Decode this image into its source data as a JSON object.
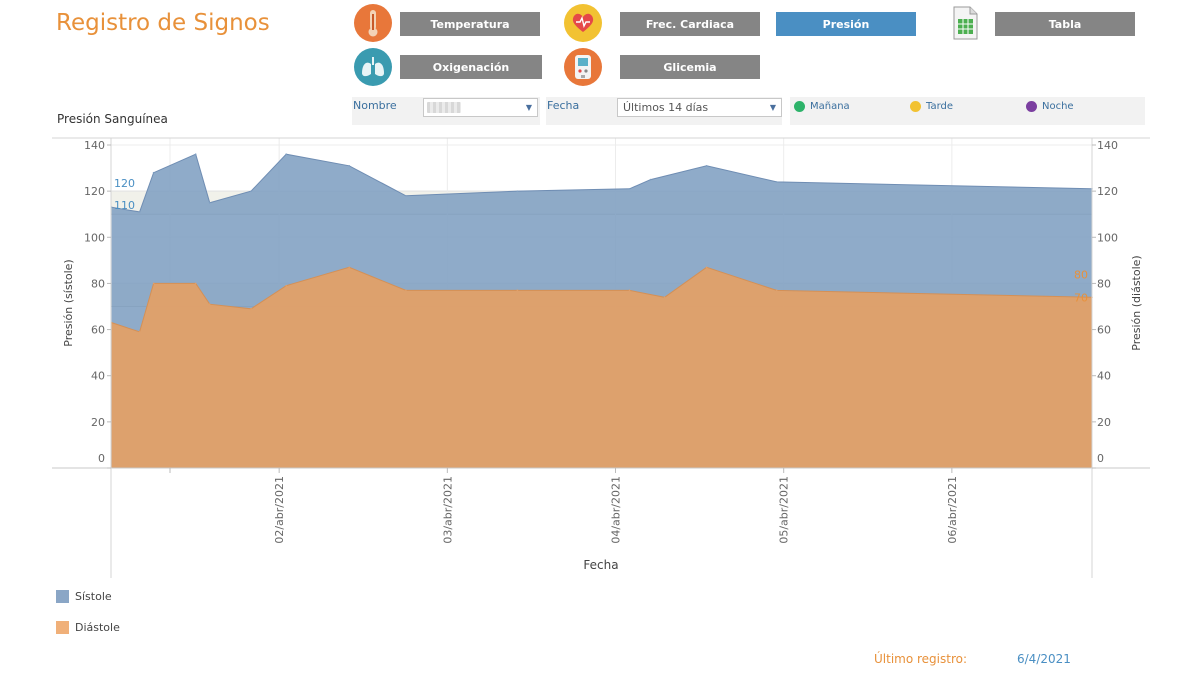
{
  "app": {
    "title": "Registro de Signos"
  },
  "nav": [
    {
      "key": "temperatura",
      "label": "Temperatura",
      "icon": "thermometer-icon",
      "icon_bg": "#e8773a",
      "active": false
    },
    {
      "key": "frec",
      "label": "Frec. Cardiaca",
      "icon": "heart-icon",
      "icon_bg": "#f2c232",
      "active": false
    },
    {
      "key": "presion",
      "label": "Presión",
      "icon": "",
      "icon_bg": "",
      "active": true
    },
    {
      "key": "tabla",
      "label": "Tabla",
      "icon": "spreadsheet-icon",
      "icon_bg": "",
      "active": false
    },
    {
      "key": "oxigenacion",
      "label": "Oxigenación",
      "icon": "lungs-icon",
      "icon_bg": "#3a9bb0",
      "active": false
    },
    {
      "key": "glicemia",
      "label": "Glicemia",
      "icon": "glucometer-icon",
      "icon_bg": "#e8773a",
      "active": false
    }
  ],
  "filters": {
    "nombre_label": "Nombre",
    "fecha_label": "Fecha",
    "fecha_value": "Últimos 14 días",
    "shifts": [
      {
        "label": "Mañana",
        "color": "#2db36a"
      },
      {
        "label": "Tarde",
        "color": "#f2c232"
      },
      {
        "label": "Noche",
        "color": "#7b3fa0"
      }
    ]
  },
  "chart_title": "Presión Sanguínea",
  "chart_data": {
    "type": "area",
    "xlabel": "Fecha",
    "ylabel_left": "Presión (sístole)",
    "ylabel_right": "Presión (diástole)",
    "ylim": [
      0,
      140
    ],
    "yticks": [
      0,
      20,
      40,
      60,
      80,
      100,
      120,
      140
    ],
    "x_ticks": [
      "02/abr/2021",
      "03/abr/2021",
      "04/abr/2021",
      "05/abr/2021",
      "06/abr/2021"
    ],
    "x_range": [
      "2021-04-01T00:00",
      "2021-04-06T20:00"
    ],
    "reference_bands": [
      {
        "min": 110,
        "max": 120,
        "labels": [
          "110",
          "120"
        ],
        "label_color": "#4a8fc3"
      },
      {
        "min": 70,
        "max": 80,
        "labels": [
          "70",
          "80"
        ],
        "label_color": "#e8913a"
      }
    ],
    "series": [
      {
        "name": "Sístole",
        "color": "#7f9fc2",
        "points": [
          [
            "2021-04-01T00:05",
            113
          ],
          [
            "2021-04-01T04:05",
            111
          ],
          [
            "2021-04-01T06:05",
            128
          ],
          [
            "2021-04-01T12:05",
            136
          ],
          [
            "2021-04-01T14:05",
            115
          ],
          [
            "2021-04-01T20:00",
            120
          ],
          [
            "2021-04-02T01:00",
            136
          ],
          [
            "2021-04-02T10:00",
            131
          ],
          [
            "2021-04-02T18:05",
            118
          ],
          [
            "2021-04-03T10:00",
            120
          ],
          [
            "2021-04-04T02:00",
            121
          ],
          [
            "2021-04-04T05:00",
            125
          ],
          [
            "2021-04-04T13:00",
            131
          ],
          [
            "2021-04-04T23:00",
            124
          ],
          [
            "2021-04-06T20:00",
            121
          ]
        ]
      },
      {
        "name": "Diástole",
        "color": "#e2a068",
        "points": [
          [
            "2021-04-01T00:05",
            63
          ],
          [
            "2021-04-01T04:05",
            59
          ],
          [
            "2021-04-01T06:05",
            80
          ],
          [
            "2021-04-01T12:05",
            80
          ],
          [
            "2021-04-01T14:05",
            71
          ],
          [
            "2021-04-01T20:00",
            69
          ],
          [
            "2021-04-02T01:00",
            79
          ],
          [
            "2021-04-02T10:00",
            87
          ],
          [
            "2021-04-02T18:05",
            77
          ],
          [
            "2021-04-03T10:00",
            77
          ],
          [
            "2021-04-04T02:00",
            77
          ],
          [
            "2021-04-04T07:00",
            74
          ],
          [
            "2021-04-04T13:00",
            87
          ],
          [
            "2021-04-04T23:00",
            77
          ],
          [
            "2021-04-06T20:00",
            74
          ]
        ]
      }
    ]
  },
  "legend": [
    {
      "label": "Sístole",
      "color": "#8aa6c6"
    },
    {
      "label": "Diástole",
      "color": "#f0b079"
    }
  ],
  "footer": {
    "last_label": "Último registro:",
    "last_value": "6/4/2021"
  }
}
